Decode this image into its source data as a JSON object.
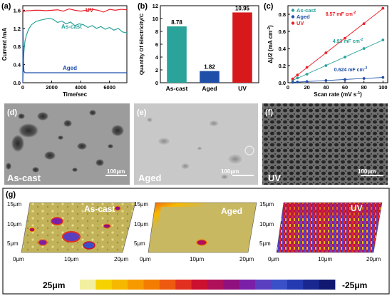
{
  "panels": {
    "a": {
      "letter": "(a)"
    },
    "b": {
      "letter": "(b)"
    },
    "c": {
      "letter": "(c)"
    },
    "d": {
      "letter": "(d)",
      "label": "As-cast",
      "scale": "100μm"
    },
    "e": {
      "letter": "(e)",
      "label": "Aged",
      "scale": "100μm"
    },
    "f": {
      "letter": "(f)",
      "label": "UV",
      "scale": "100μm"
    },
    "g": {
      "letter": "(g)",
      "maps": [
        {
          "label": "As-cast"
        },
        {
          "label": "Aged"
        },
        {
          "label": "UV"
        }
      ],
      "yticks": [
        "15μm",
        "10μm",
        "5μm"
      ],
      "xticks": [
        "0μm",
        "10μm",
        "20μm"
      ],
      "colorbar": {
        "max": "25μm",
        "min": "-25μm",
        "colors": [
          "#f2f0a0",
          "#f5d200",
          "#f6b800",
          "#f79a00",
          "#f47d00",
          "#ee5a10",
          "#e23020",
          "#cc1030",
          "#b0105a",
          "#901080",
          "#7a20a8",
          "#5a40c0",
          "#3a50c8",
          "#243ab0",
          "#182890",
          "#101870"
        ]
      }
    }
  },
  "chart_data": [
    {
      "type": "line",
      "title": "",
      "xlabel": "Time/sec",
      "ylabel": "Current /mA",
      "xlim": [
        0,
        7200
      ],
      "ylim": [
        0,
        1.7
      ],
      "xticks": [
        0,
        2000,
        4000,
        6000
      ],
      "yticks": [
        0.0,
        0.4,
        0.8,
        1.2,
        1.6
      ],
      "series": [
        {
          "name": "UV",
          "color": "#e8202a",
          "x": [
            0,
            20,
            60,
            150,
            300,
            500,
            800,
            1200,
            1600,
            2000,
            2400,
            2800,
            3200,
            3600,
            4000,
            4400,
            4800,
            5200,
            5600,
            6000,
            6400,
            6800,
            7200
          ],
          "y": [
            1.62,
            1.55,
            1.58,
            1.58,
            1.59,
            1.59,
            1.6,
            1.6,
            1.59,
            1.6,
            1.61,
            1.58,
            1.63,
            1.6,
            1.58,
            1.6,
            1.62,
            1.6,
            1.56,
            1.62,
            1.6,
            1.62,
            1.61
          ]
        },
        {
          "name": "As-cast",
          "color": "#2aa39a",
          "x": [
            0,
            30,
            80,
            150,
            250,
            400,
            600,
            900,
            1200,
            1500,
            1800,
            2100,
            2400,
            2700,
            3000,
            3300,
            3600,
            3900,
            4200,
            4500,
            4800,
            5100,
            5400,
            5700,
            6000,
            6300,
            6600,
            6900,
            7200
          ],
          "y": [
            0.05,
            0.4,
            0.7,
            0.92,
            1.05,
            1.18,
            1.28,
            1.35,
            1.38,
            1.4,
            1.42,
            1.4,
            1.33,
            1.36,
            1.3,
            1.34,
            1.26,
            1.3,
            1.28,
            1.22,
            1.26,
            1.2,
            1.24,
            1.18,
            1.22,
            1.16,
            1.2,
            1.12,
            1.1
          ]
        },
        {
          "name": "Aged",
          "color": "#1f4fa8",
          "x": [
            0,
            15,
            40,
            80,
            150,
            300,
            600,
            1000,
            2000,
            3000,
            4000,
            5000,
            6000,
            7200
          ],
          "y": [
            0.0,
            1.2,
            0.5,
            0.25,
            0.22,
            0.22,
            0.22,
            0.22,
            0.22,
            0.22,
            0.22,
            0.22,
            0.22,
            0.22
          ]
        }
      ]
    },
    {
      "type": "bar",
      "title": "",
      "xlabel": "",
      "ylabel": "Quantity Of Electricity/C",
      "ylim": [
        0,
        12
      ],
      "yticks": [
        0,
        2,
        4,
        6,
        8,
        10,
        12
      ],
      "categories": [
        "As-cast",
        "Aged",
        "UV"
      ],
      "values": [
        8.78,
        1.82,
        10.95
      ],
      "value_labels": [
        "8.78",
        "1.82",
        "10.95"
      ],
      "colors": [
        "#2aa39a",
        "#1f4fa8",
        "#d7191c"
      ]
    },
    {
      "type": "scatter",
      "title": "",
      "xlabel": "Scan rate (mV s",
      "xlabel_sup": "-1",
      "xlabel_end": ")",
      "ylabel": "Δj/2 (mA cm",
      "ylabel_sup": "-2",
      "ylabel_end": ")",
      "xlim": [
        0,
        105
      ],
      "ylim": [
        0,
        0.9
      ],
      "xticks": [
        0,
        20,
        40,
        60,
        80,
        100
      ],
      "yticks": [
        0.0,
        0.2,
        0.4,
        0.6,
        0.8
      ],
      "legend_placement": "top-left",
      "series": [
        {
          "name": "As-cast",
          "color": "#2aa39a",
          "annotation": "4.93 mF cm",
          "annotation_sup": "-2",
          "x": [
            5,
            10,
            20,
            40,
            60,
            80,
            100
          ],
          "y": [
            0.03,
            0.055,
            0.1,
            0.2,
            0.3,
            0.4,
            0.5
          ]
        },
        {
          "name": "Aged",
          "color": "#1f4fa8",
          "annotation": "0.624 mF cm",
          "annotation_sup": "-2",
          "x": [
            5,
            10,
            20,
            40,
            60,
            80,
            100
          ],
          "y": [
            0.005,
            0.008,
            0.014,
            0.026,
            0.038,
            0.05,
            0.062
          ]
        },
        {
          "name": "UV",
          "color": "#e8202a",
          "annotation": "8.57 mF cm",
          "annotation_sup": "-2",
          "x": [
            5,
            10,
            20,
            40,
            60,
            80,
            100
          ],
          "y": [
            0.045,
            0.09,
            0.18,
            0.35,
            0.52,
            0.69,
            0.87
          ]
        }
      ]
    }
  ]
}
